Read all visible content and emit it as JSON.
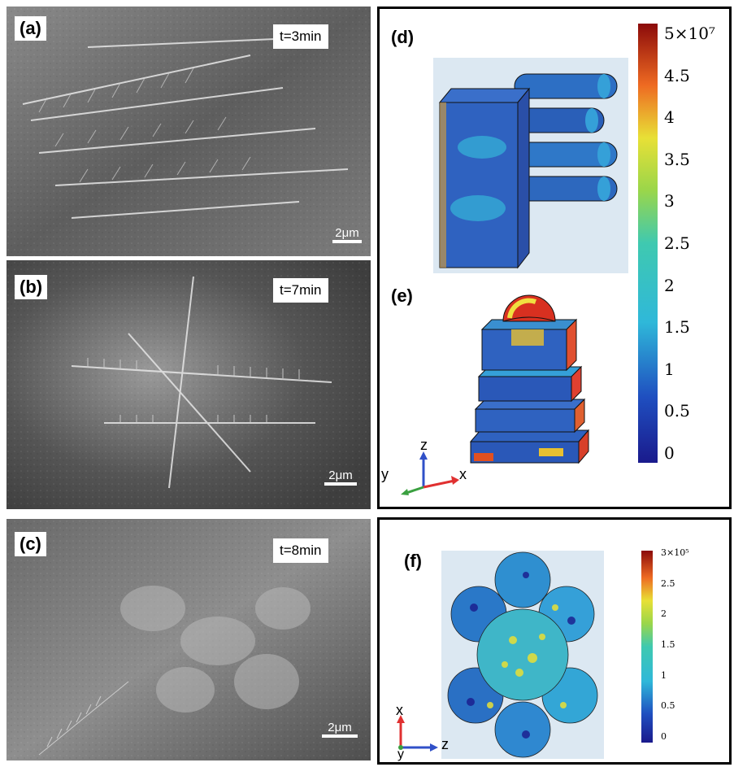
{
  "panels": {
    "a": {
      "label": "(a)",
      "time": "t=3min",
      "scale": "2μm"
    },
    "b": {
      "label": "(b)",
      "time": "t=7min",
      "scale": "2μm"
    },
    "c": {
      "label": "(c)",
      "time": "t=8min",
      "scale": "2μm"
    },
    "d": {
      "label": "(d)"
    },
    "e": {
      "label": "(e)"
    },
    "f": {
      "label": "(f)"
    }
  },
  "colorbar_top": {
    "ticks": [
      "5×10⁷",
      "4.5",
      "4",
      "3.5",
      "3",
      "2.5",
      "2",
      "1.5",
      "1",
      "0.5",
      "0"
    ]
  },
  "colorbar_bottom": {
    "ticks": [
      "3×10⁵",
      "2.5",
      "2",
      "1.5",
      "1",
      "0.5",
      "0"
    ]
  },
  "axes_top": {
    "z": "z",
    "y": "y",
    "x": "x"
  },
  "axes_bottom": {
    "x": "x",
    "z": "z",
    "y": "y"
  },
  "colors": {
    "jet_low": "#1a1a8c",
    "jet_mid": "#2fb8d9",
    "jet_high": "#8b0a0a",
    "axis_red": "#e03030",
    "axis_green": "#3aa040",
    "axis_blue": "#3050c8"
  }
}
